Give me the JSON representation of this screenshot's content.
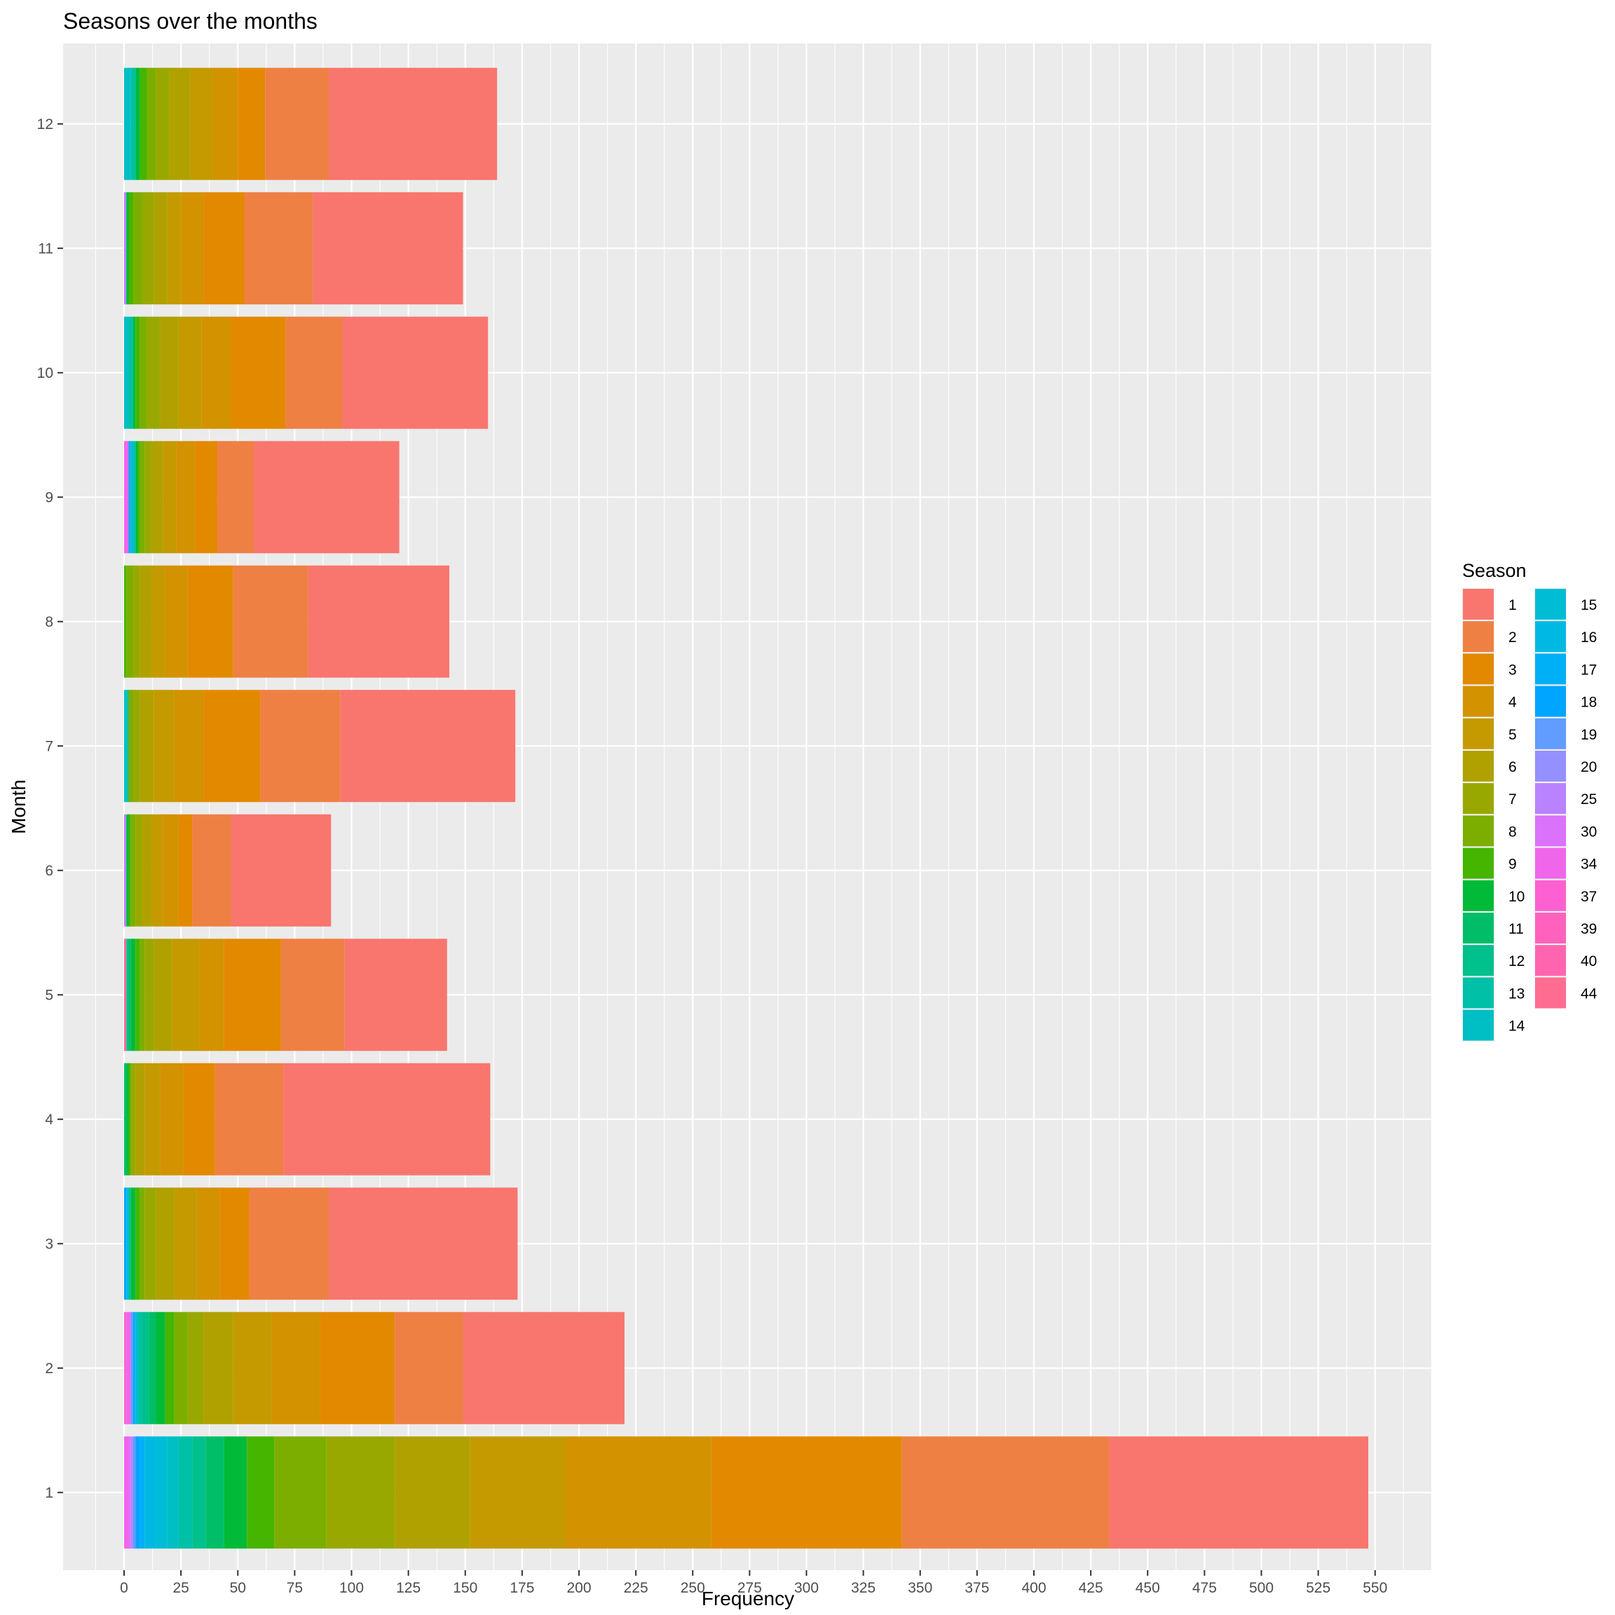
{
  "chart_data": {
    "type": "bar",
    "orientation": "horizontal",
    "stacked": true,
    "title": "Seasons over the months",
    "xlabel": "Frequency",
    "ylabel": "Month",
    "xlim": [
      0,
      550
    ],
    "x_ticks": [
      "0",
      "25",
      "50",
      "75",
      "100",
      "125",
      "150",
      "175",
      "200",
      "225",
      "250",
      "275",
      "300",
      "325",
      "350",
      "375",
      "400",
      "425",
      "450",
      "475",
      "500",
      "525",
      "550"
    ],
    "categories": [
      "1",
      "2",
      "3",
      "4",
      "5",
      "6",
      "7",
      "8",
      "9",
      "10",
      "11",
      "12"
    ],
    "grid": true,
    "legend": {
      "title": "Season",
      "placement": "right",
      "entries": [
        {
          "label": "1",
          "color": "#F8766D"
        },
        {
          "label": "2",
          "color": "#EE8044"
        },
        {
          "label": "3",
          "color": "#E38900"
        },
        {
          "label": "4",
          "color": "#D39200"
        },
        {
          "label": "5",
          "color": "#C49A00"
        },
        {
          "label": "6",
          "color": "#B0A100"
        },
        {
          "label": "7",
          "color": "#99A800"
        },
        {
          "label": "8",
          "color": "#7CAE00"
        },
        {
          "label": "9",
          "color": "#45B500"
        },
        {
          "label": "10",
          "color": "#00BA38"
        },
        {
          "label": "11",
          "color": "#00BE67"
        },
        {
          "label": "12",
          "color": "#00C08B"
        },
        {
          "label": "13",
          "color": "#00C1A7"
        },
        {
          "label": "14",
          "color": "#00BFC4"
        },
        {
          "label": "15",
          "color": "#00BCD5"
        },
        {
          "label": "16",
          "color": "#00B9E3"
        },
        {
          "label": "17",
          "color": "#00B0F6"
        },
        {
          "label": "18",
          "color": "#00A5FF"
        },
        {
          "label": "19",
          "color": "#619CFF"
        },
        {
          "label": "20",
          "color": "#9590FF"
        },
        {
          "label": "25",
          "color": "#B983FF"
        },
        {
          "label": "30",
          "color": "#DB72FB"
        },
        {
          "label": "34",
          "color": "#F066EA"
        },
        {
          "label": "37",
          "color": "#FD61D1"
        },
        {
          "label": "39",
          "color": "#FF62BC"
        },
        {
          "label": "40",
          "color": "#FF65AE"
        },
        {
          "label": "44",
          "color": "#FF6C91"
        }
      ]
    },
    "season_order": [
      "1",
      "2",
      "3",
      "4",
      "5",
      "6",
      "7",
      "8",
      "9",
      "10",
      "11",
      "12",
      "13",
      "14",
      "15",
      "16",
      "17",
      "18",
      "19",
      "20",
      "25",
      "30",
      "34",
      "37",
      "39",
      "40",
      "44"
    ],
    "month_values": {
      "1": {
        "1": 114,
        "2": 91,
        "3": 84,
        "4": 64,
        "5": 42,
        "6": 33,
        "7": 30,
        "8": 23,
        "9": 12,
        "10": 10,
        "11": 8,
        "12": 6,
        "13": 6,
        "14": 5,
        "15": 5,
        "16": 5,
        "17": 2,
        "18": 2,
        "19": 1,
        "25": 1,
        "30": 1,
        "34": 2
      },
      "2": {
        "1": 71,
        "2": 30,
        "3": 33,
        "4": 21,
        "5": 17,
        "6": 13,
        "7": 7,
        "8": 6,
        "9": 4,
        "10": 4,
        "11": 3,
        "12": 3,
        "13": 2,
        "15": 1,
        "17": 1,
        "19": 1,
        "34": 2,
        "37": 1
      },
      "3": {
        "1": 83,
        "2": 35,
        "3": 13,
        "4": 10,
        "5": 10,
        "6": 8,
        "7": 5,
        "8": 2,
        "9": 2,
        "10": 2,
        "12": 1,
        "16": 1,
        "18": 1
      },
      "4": {
        "1": 91,
        "2": 30,
        "3": 14,
        "4": 10,
        "5": 7,
        "6": 4,
        "7": 2,
        "9": 1,
        "10": 1,
        "11": 1
      },
      "5": {
        "1": 45,
        "2": 28,
        "3": 25,
        "4": 11,
        "5": 12,
        "6": 8,
        "7": 4,
        "8": 2,
        "9": 2,
        "10": 2,
        "11": 1,
        "12": 1,
        "44": 1
      },
      "6": {
        "1": 44,
        "2": 17,
        "3": 6,
        "4": 7,
        "5": 5,
        "6": 4,
        "7": 3,
        "8": 2,
        "9": 1,
        "10": 1,
        "25": 1
      },
      "7": {
        "1": 77,
        "2": 35,
        "3": 25,
        "4": 13,
        "5": 9,
        "6": 6,
        "7": 3,
        "8": 2,
        "13": 1,
        "14": 1
      },
      "8": {
        "1": 62,
        "2": 33,
        "3": 20,
        "4": 10,
        "5": 6,
        "6": 5,
        "7": 3,
        "8": 3,
        "9": 1
      },
      "9": {
        "1": 64,
        "2": 16,
        "3": 10,
        "4": 8,
        "5": 6,
        "6": 5,
        "7": 3,
        "8": 2,
        "9": 1,
        "10": 1,
        "14": 2,
        "17": 1,
        "34": 2
      },
      "10": {
        "1": 64,
        "2": 25,
        "3": 24,
        "4": 13,
        "5": 10,
        "6": 8,
        "7": 6,
        "8": 3,
        "9": 2,
        "10": 1,
        "13": 2,
        "14": 2
      },
      "11": {
        "1": 66,
        "2": 30,
        "3": 18,
        "4": 10,
        "5": 6,
        "6": 6,
        "7": 5,
        "8": 4,
        "9": 2,
        "10": 1,
        "25": 1
      },
      "12": {
        "1": 74,
        "2": 28,
        "3": 12,
        "4": 11,
        "5": 10,
        "6": 9,
        "7": 6,
        "8": 4,
        "9": 3,
        "10": 2,
        "13": 2,
        "14": 3
      }
    }
  }
}
